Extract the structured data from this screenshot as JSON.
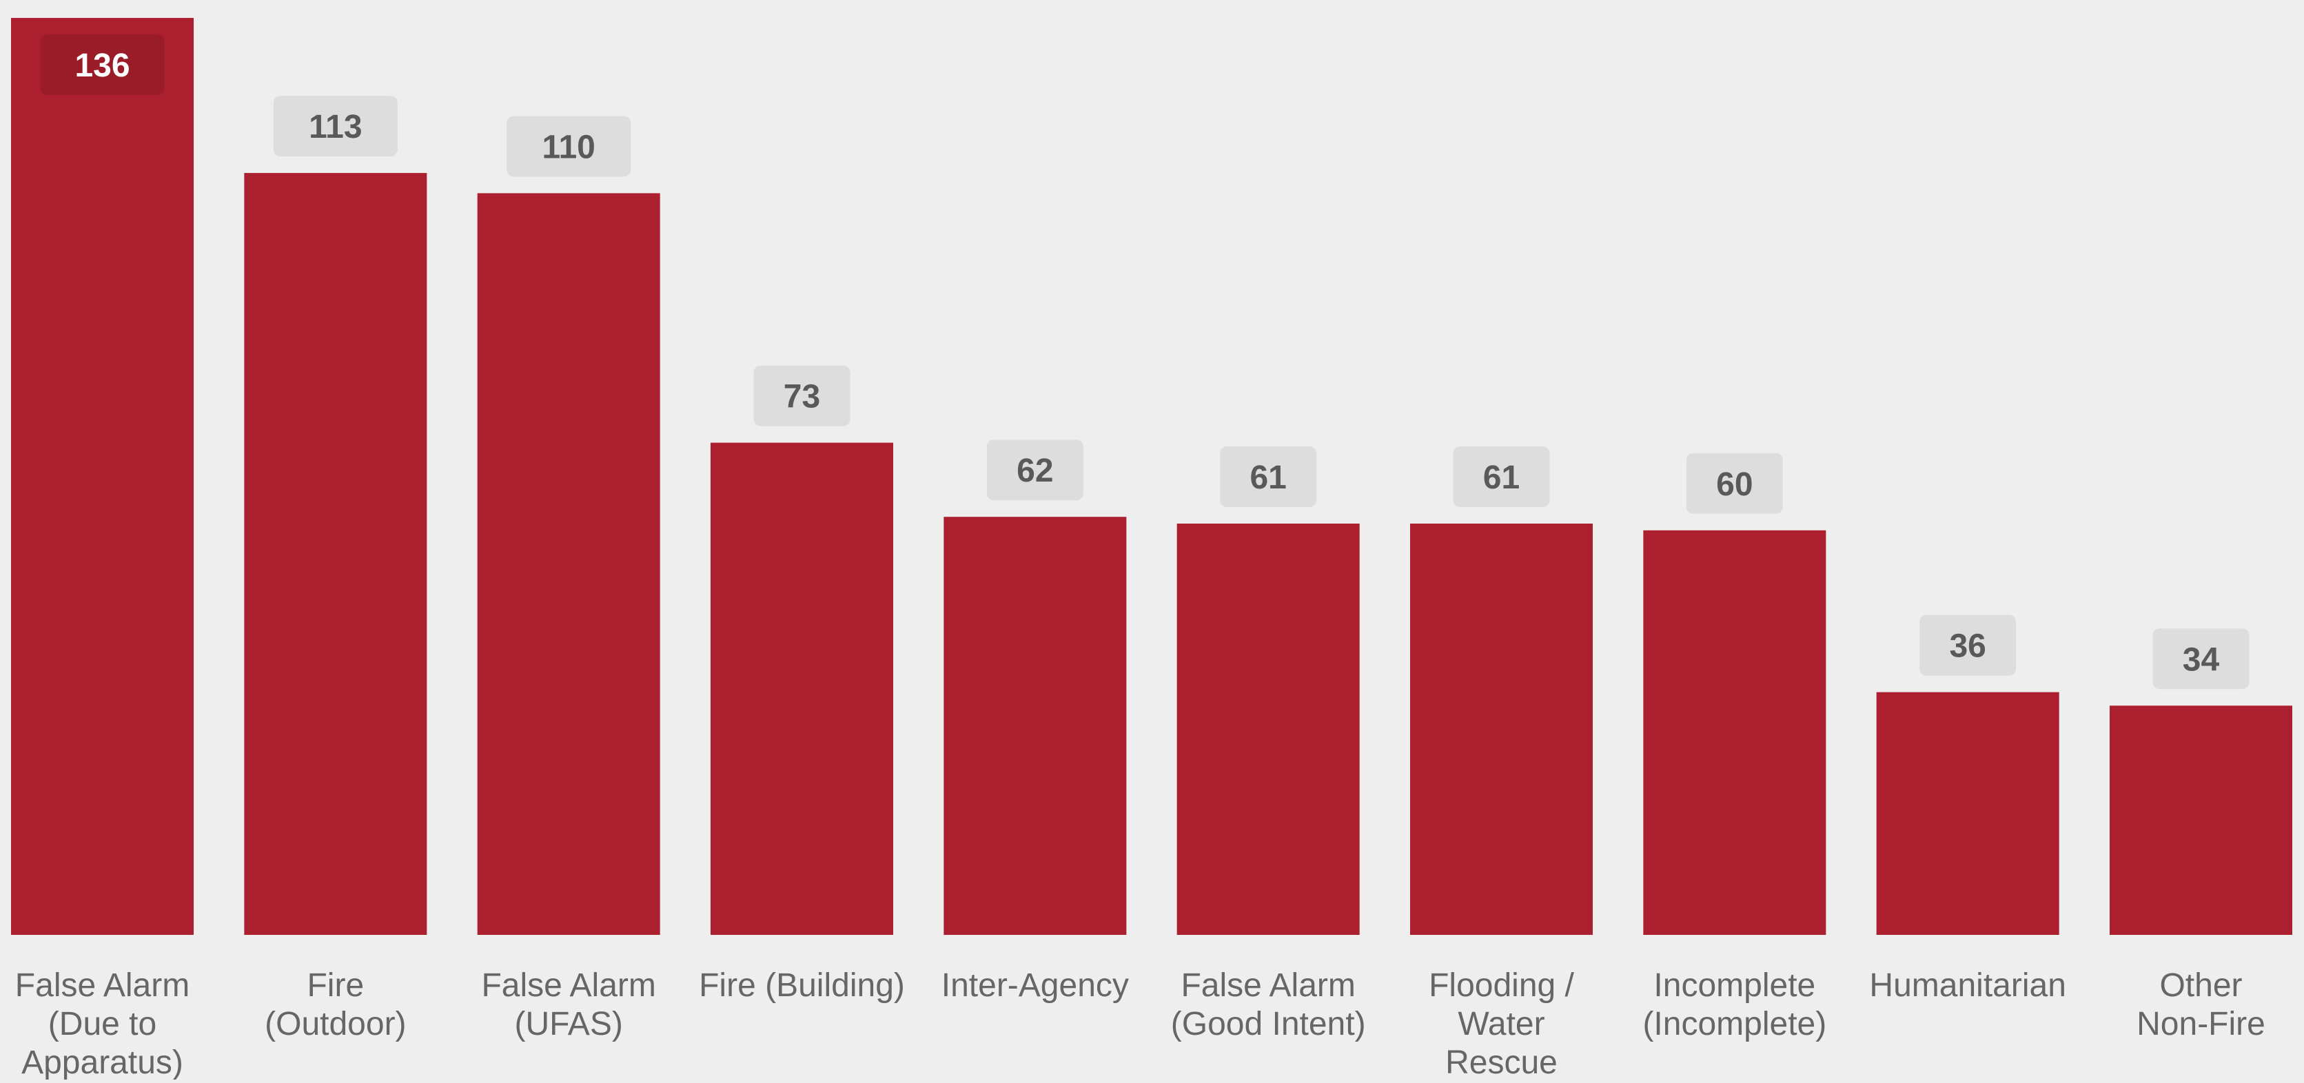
{
  "chart_data": {
    "type": "bar",
    "title": "",
    "xlabel": "",
    "ylabel": "",
    "categories": [
      [
        "False Alarm",
        "(Due to",
        "Apparatus)"
      ],
      [
        "Fire",
        "(Outdoor)"
      ],
      [
        "False Alarm",
        "(UFAS)"
      ],
      [
        "Fire (Building)"
      ],
      [
        "Inter-Agency"
      ],
      [
        "False Alarm",
        "(Good Intent)"
      ],
      [
        "Flooding /",
        "Water",
        "Rescue"
      ],
      [
        "Incomplete",
        "(Incomplete)"
      ],
      [
        "Humanitarian"
      ],
      [
        "Other",
        "Non-Fire"
      ]
    ],
    "values": [
      136,
      113,
      110,
      73,
      62,
      61,
      61,
      60,
      36,
      34
    ],
    "ylim": [
      0,
      136
    ],
    "grid": false,
    "legend": "none",
    "colors": {
      "background": "#eeeeee",
      "bar": "#ab1f2e",
      "label_badge": "#dddddd",
      "label_text": "#595959",
      "top_label_badge": "#9a1c28",
      "top_label_text": "#ffffff",
      "category_text": "#666666"
    }
  }
}
